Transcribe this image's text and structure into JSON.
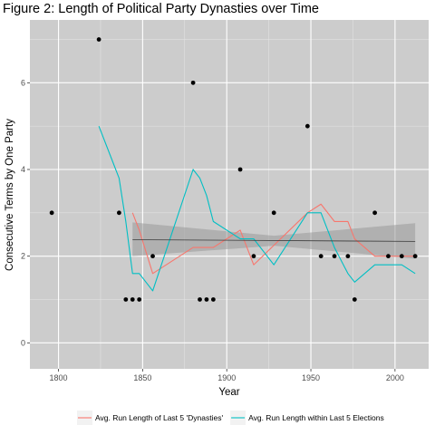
{
  "chart_data": {
    "type": "scatter",
    "title": "Figure 2: Length of Political Party Dynasties over Time",
    "xlabel": "Year",
    "ylabel": "Consecutive Terms by One Party",
    "xlim": [
      1783,
      2020
    ],
    "ylim": [
      -0.6,
      7.45
    ],
    "x_ticks": [
      1800,
      1850,
      1900,
      1950,
      2000
    ],
    "y_ticks": [
      0,
      2,
      4,
      6
    ],
    "grid": true,
    "background": "#cccccc",
    "points": [
      {
        "x": 1796,
        "y": 3
      },
      {
        "x": 1824,
        "y": 7
      },
      {
        "x": 1836,
        "y": 3
      },
      {
        "x": 1840,
        "y": 1
      },
      {
        "x": 1844,
        "y": 1
      },
      {
        "x": 1848,
        "y": 1
      },
      {
        "x": 1856,
        "y": 2
      },
      {
        "x": 1880,
        "y": 6
      },
      {
        "x": 1884,
        "y": 1
      },
      {
        "x": 1888,
        "y": 1
      },
      {
        "x": 1892,
        "y": 1
      },
      {
        "x": 1908,
        "y": 4
      },
      {
        "x": 1916,
        "y": 2
      },
      {
        "x": 1928,
        "y": 3
      },
      {
        "x": 1948,
        "y": 5
      },
      {
        "x": 1956,
        "y": 2
      },
      {
        "x": 1964,
        "y": 2
      },
      {
        "x": 1972,
        "y": 2
      },
      {
        "x": 1976,
        "y": 1
      },
      {
        "x": 1988,
        "y": 3
      },
      {
        "x": 1996,
        "y": 2
      },
      {
        "x": 2004,
        "y": 2
      },
      {
        "x": 2012,
        "y": 2
      }
    ],
    "series": [
      {
        "name": "Avg. Run Length of Last 5 'Dynasties'",
        "color": "#f8766d",
        "x": [
          1844,
          1848,
          1856,
          1880,
          1892,
          1908,
          1916,
          1948,
          1956,
          1964,
          1972,
          1976,
          1988,
          2012
        ],
        "y": [
          3.0,
          2.6,
          1.6,
          2.2,
          2.2,
          2.6,
          1.8,
          3.0,
          3.2,
          2.8,
          2.8,
          2.4,
          2.0,
          2.0
        ]
      },
      {
        "name": "Avg. Run Length within Last 5 Elections",
        "color": "#00bfc4",
        "x": [
          1824,
          1836,
          1840,
          1844,
          1848,
          1856,
          1880,
          1884,
          1888,
          1892,
          1908,
          1916,
          1928,
          1948,
          1956,
          1964,
          1972,
          1976,
          1988,
          2004,
          2012
        ],
        "y": [
          5.0,
          3.8,
          2.8,
          1.6,
          1.6,
          1.2,
          4.0,
          3.8,
          3.4,
          2.8,
          2.4,
          2.4,
          1.8,
          3.0,
          3.0,
          2.2,
          1.6,
          1.4,
          1.8,
          1.8,
          1.6
        ]
      }
    ],
    "trend": {
      "x": [
        1844,
        2012
      ],
      "y": [
        2.38,
        2.34
      ],
      "band_upper": [
        2.78,
        2.76
      ],
      "band_lower": [
        2.0,
        1.94
      ],
      "band_upper_mid": 2.47,
      "band_lower_mid": 2.24,
      "color": "#3a3a3a",
      "band_color": "#999999"
    },
    "legend_position": "bottom"
  }
}
